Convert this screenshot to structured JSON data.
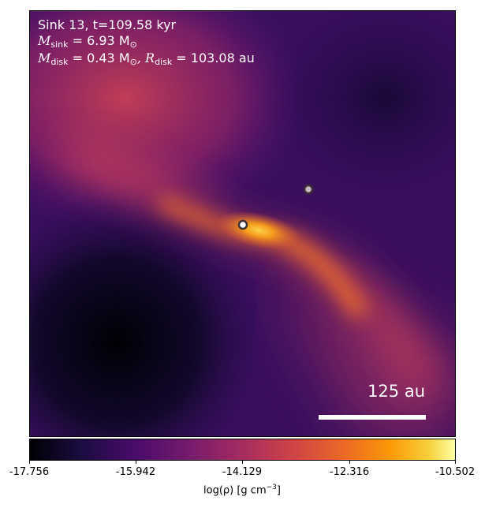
{
  "header": {
    "title_line": "Sink 13, t=109.58 kyr",
    "msink_symbol": "M",
    "msink_sub": "sink",
    "msink_value": " = 6.93 M",
    "msink_unit_sub": "⊙",
    "mdisk_symbol": "M",
    "mdisk_sub": "disk",
    "mdisk_value": " = 0.43 M",
    "mdisk_unit_sub": "⊙",
    "rdisk_symbol": ", R",
    "rdisk_sub": "disk",
    "rdisk_value": " = 103.08 au"
  },
  "scalebar": {
    "label": "125 au"
  },
  "colorbar": {
    "ticks": [
      "-17.756",
      "-15.942",
      "-14.129",
      "-12.316",
      "-10.502"
    ],
    "label_main": "log(ρ) [g cm",
    "label_exp": "−3",
    "label_end": "]",
    "colormap": "inferno"
  },
  "sinks": [
    {
      "name": "primary-sink",
      "color": "#ffffff"
    },
    {
      "name": "secondary-sink",
      "color": "#c9b4c8"
    }
  ]
}
